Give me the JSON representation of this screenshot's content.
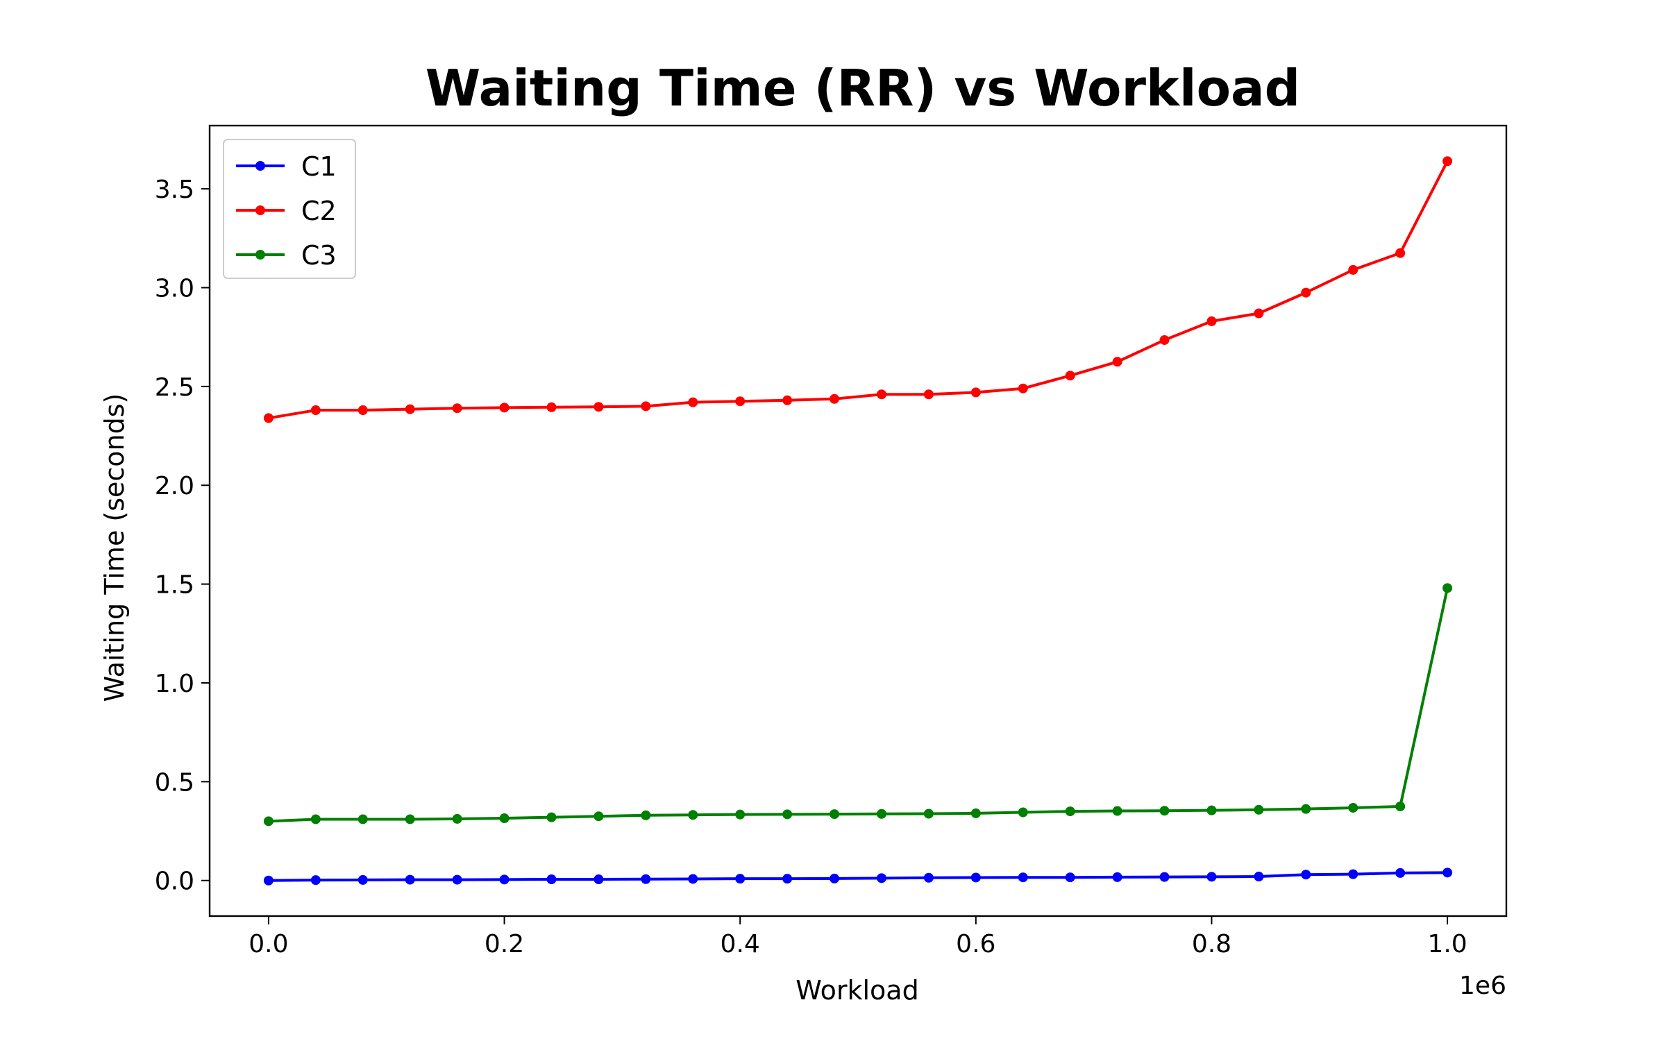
{
  "chart_data": {
    "type": "line",
    "title": "Waiting Time (RR) vs Workload",
    "xlabel": "Workload",
    "ylabel": "Waiting Time (seconds)",
    "x_offset_label": "1e6",
    "xlim": [
      -0.05,
      1.05
    ],
    "ylim": [
      -0.18,
      3.82
    ],
    "xticks": [
      0.0,
      0.2,
      0.4,
      0.6,
      0.8,
      1.0
    ],
    "xtick_labels": [
      "0.0",
      "0.2",
      "0.4",
      "0.6",
      "0.8",
      "1.0"
    ],
    "yticks": [
      0.0,
      0.5,
      1.0,
      1.5,
      2.0,
      2.5,
      3.0,
      3.5
    ],
    "ytick_labels": [
      "0.0",
      "0.5",
      "1.0",
      "1.5",
      "2.0",
      "2.5",
      "3.0",
      "3.5"
    ],
    "grid": false,
    "legend_position": "top-left",
    "x": [
      0,
      0.04,
      0.08,
      0.12,
      0.16,
      0.2,
      0.24,
      0.28,
      0.32,
      0.36,
      0.4,
      0.44,
      0.48,
      0.52,
      0.56,
      0.6,
      0.64,
      0.68,
      0.72,
      0.76,
      0.8,
      0.84,
      0.88,
      0.92,
      0.96,
      1.0
    ],
    "series": [
      {
        "name": "C1",
        "color": "#0000ff",
        "values": [
          0.0,
          0.002,
          0.003,
          0.004,
          0.004,
          0.005,
          0.006,
          0.006,
          0.007,
          0.008,
          0.009,
          0.009,
          0.01,
          0.012,
          0.014,
          0.015,
          0.016,
          0.016,
          0.017,
          0.018,
          0.019,
          0.02,
          0.03,
          0.032,
          0.038,
          0.04
        ]
      },
      {
        "name": "C2",
        "color": "#ff0000",
        "values": [
          2.34,
          2.38,
          2.38,
          2.385,
          2.39,
          2.393,
          2.395,
          2.397,
          2.4,
          2.42,
          2.425,
          2.43,
          2.437,
          2.46,
          2.46,
          2.47,
          2.49,
          2.555,
          2.625,
          2.735,
          2.83,
          2.87,
          2.975,
          3.09,
          3.175,
          3.64
        ]
      },
      {
        "name": "C3",
        "color": "#008000",
        "values": [
          0.3,
          0.31,
          0.31,
          0.31,
          0.312,
          0.315,
          0.32,
          0.325,
          0.33,
          0.332,
          0.334,
          0.335,
          0.336,
          0.337,
          0.338,
          0.34,
          0.345,
          0.35,
          0.352,
          0.353,
          0.355,
          0.358,
          0.362,
          0.368,
          0.375,
          1.48
        ]
      }
    ]
  }
}
